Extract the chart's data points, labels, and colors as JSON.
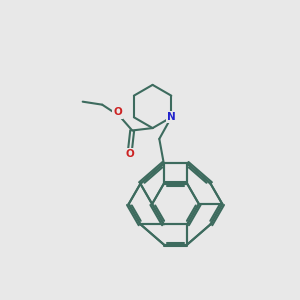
{
  "bg_color": "#e8e8e8",
  "bond_color": "#3d6b5e",
  "N_color": "#2222cc",
  "O_color": "#cc2222",
  "line_width": 1.5,
  "figsize": [
    3.0,
    3.0
  ],
  "dpi": 100,
  "xlim": [
    0,
    10
  ],
  "ylim": [
    0,
    10
  ]
}
